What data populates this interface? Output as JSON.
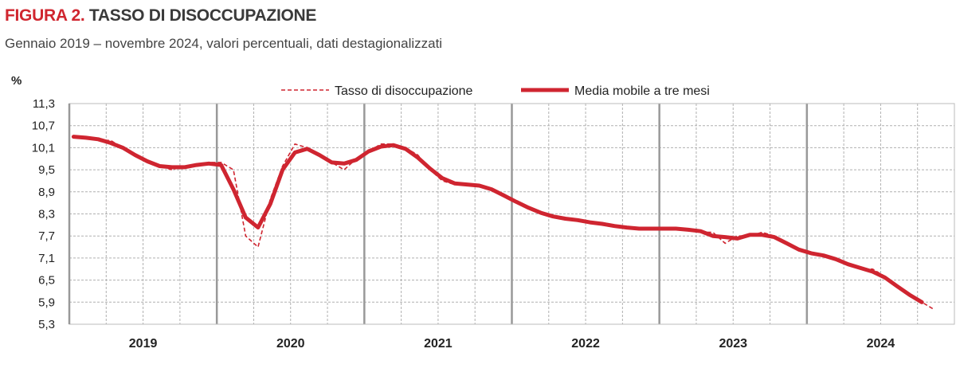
{
  "title_prefix": "FIGURA 2.",
  "title": "TASSO DI DISOCCUPAZIONE",
  "subtitle": "Gennaio 2019 – novembre 2024, valori percentuali, dati destagionalizzati",
  "colors": {
    "series": "#cf2530",
    "title_accent": "#d0262f",
    "grid": "#b0b0b0",
    "year_line": "#999999"
  },
  "chart_data": {
    "type": "line",
    "ylabel": "%",
    "ylim": [
      5.3,
      11.3
    ],
    "yticks": [
      "5,3",
      "5,9",
      "6,5",
      "7,1",
      "7,7",
      "8,3",
      "8,9",
      "9,5",
      "10,1",
      "10,7",
      "11,3"
    ],
    "ytick_values": [
      5.3,
      5.9,
      6.5,
      7.1,
      7.7,
      8.3,
      8.9,
      9.5,
      10.1,
      10.7,
      11.3
    ],
    "xticks": [
      "2019",
      "2020",
      "2021",
      "2022",
      "2023",
      "2024"
    ],
    "x_start": "2019-01",
    "x_unit": "month",
    "grid": true,
    "legend": "top",
    "series": [
      {
        "name": "Tasso di disoccupazione",
        "style": "dashed",
        "values": [
          10.4,
          10.4,
          10.3,
          10.3,
          10.1,
          9.9,
          9.7,
          9.6,
          9.5,
          9.6,
          9.6,
          9.7,
          9.7,
          9.5,
          7.7,
          7.4,
          8.7,
          9.6,
          10.2,
          10.1,
          9.9,
          9.7,
          9.5,
          9.8,
          10.0,
          10.2,
          10.2,
          10.1,
          9.9,
          9.5,
          9.2,
          9.1,
          9.1,
          9.1,
          9.0,
          8.8,
          8.6,
          8.5,
          8.3,
          8.2,
          8.2,
          8.1,
          8.1,
          8.0,
          8.0,
          7.9,
          7.9,
          7.9,
          7.9,
          7.9,
          7.9,
          7.8,
          7.8,
          7.5,
          7.7,
          7.7,
          7.8,
          7.7,
          7.5,
          7.3,
          7.2,
          7.2,
          7.1,
          6.9,
          6.8,
          6.8,
          6.6,
          6.3,
          6.1,
          5.9,
          5.7
        ]
      },
      {
        "name": "Media mobile a tre mesi",
        "style": "solid",
        "values": [
          10.4,
          10.37,
          10.33,
          10.23,
          10.1,
          9.9,
          9.73,
          9.6,
          9.57,
          9.57,
          9.63,
          9.67,
          9.63,
          8.97,
          8.2,
          7.93,
          8.57,
          9.5,
          9.97,
          10.07,
          9.9,
          9.7,
          9.67,
          9.77,
          10.0,
          10.13,
          10.17,
          10.07,
          9.83,
          9.53,
          9.27,
          9.13,
          9.1,
          9.07,
          8.97,
          8.8,
          8.63,
          8.47,
          8.33,
          8.23,
          8.17,
          8.13,
          8.07,
          8.03,
          7.97,
          7.93,
          7.9,
          7.9,
          7.9,
          7.9,
          7.87,
          7.83,
          7.7,
          7.67,
          7.63,
          7.73,
          7.73,
          7.67,
          7.5,
          7.33,
          7.23,
          7.17,
          7.07,
          6.93,
          6.83,
          6.73,
          6.57,
          6.33,
          6.1,
          5.9
        ]
      }
    ]
  }
}
